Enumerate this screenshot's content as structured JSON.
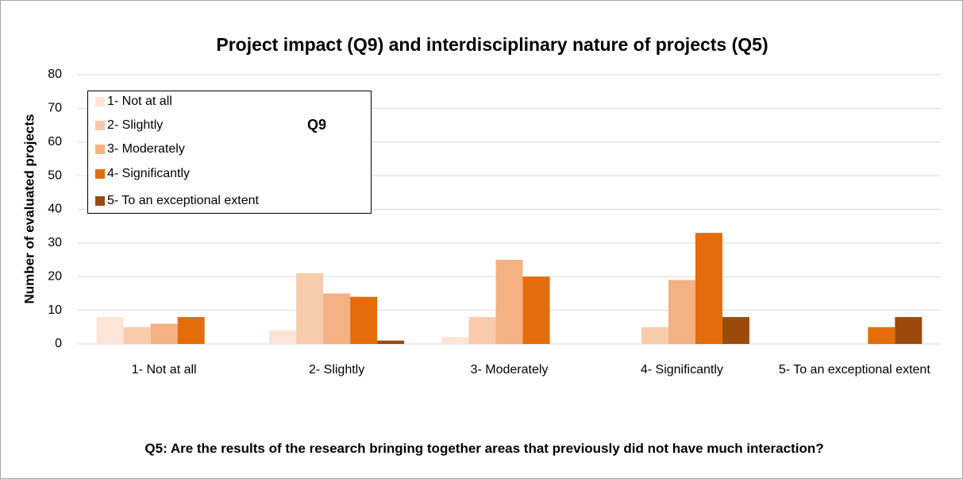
{
  "chart_data": {
    "type": "bar",
    "title": "Project impact (Q9) and interdisciplinary nature of projects (Q5)",
    "y_label": "Number of evaluated projects",
    "x_label": "Q5: Are the results of the research bringing together areas that previously did not have much interaction?",
    "annotation": "Q9",
    "categories": [
      "1- Not at all",
      "2- Slightly",
      "3- Moderately",
      "4- Significantly",
      "5- To an exceptional extent"
    ],
    "series": [
      {
        "name": "1- Not at all",
        "color": "#fce4d6",
        "values": [
          8,
          4,
          2,
          0,
          0
        ]
      },
      {
        "name": "2- Slightly",
        "color": "#f8cbad",
        "values": [
          5,
          21,
          8,
          5,
          0
        ]
      },
      {
        "name": "3- Moderately",
        "color": "#f4b183",
        "values": [
          6,
          15,
          25,
          19,
          0
        ]
      },
      {
        "name": "4- Significantly",
        "color": "#e46c0a",
        "values": [
          8,
          14,
          20,
          33,
          5
        ]
      },
      {
        "name": "5- To an exceptional extent",
        "color": "#9c4a0c",
        "values": [
          0,
          1,
          0,
          8,
          8
        ]
      }
    ],
    "ylim": [
      0,
      80
    ],
    "yticks": [
      0,
      10,
      20,
      30,
      40,
      50,
      60,
      70,
      80
    ],
    "grid": true,
    "legend": "upper left"
  }
}
